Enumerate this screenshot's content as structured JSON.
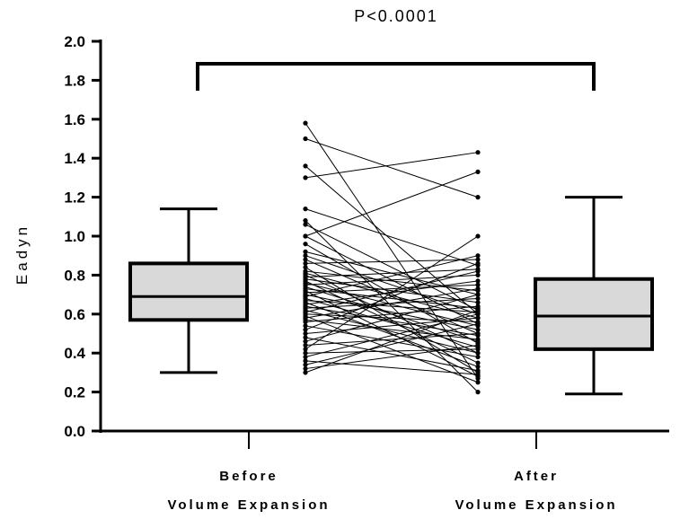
{
  "chart_data": {
    "type": "box-and-paired-lines",
    "title": "",
    "ylabel": "Eadyn",
    "xlabel": "",
    "ylim": [
      0,
      2.0
    ],
    "yticks": [
      0.0,
      0.2,
      0.4,
      0.6,
      0.8,
      1.0,
      1.2,
      1.4,
      1.6,
      1.8,
      2.0
    ],
    "ytick_labels": [
      "0.0",
      "0.2",
      "0.4",
      "0.6",
      "0.8",
      "1.0",
      "1.2",
      "1.4",
      "1.6",
      "1.8",
      "2.0"
    ],
    "categories": [
      {
        "line1": "Before",
        "line2": "Volume Expansion"
      },
      {
        "line1": "After",
        "line2": "Volume Expansion"
      }
    ],
    "boxes": [
      {
        "whisker_low": 0.3,
        "q1": 0.57,
        "median": 0.69,
        "q3": 0.86,
        "whisker_high": 1.14
      },
      {
        "whisker_low": 0.19,
        "q1": 0.42,
        "median": 0.59,
        "q3": 0.78,
        "whisker_high": 1.2
      }
    ],
    "pairs": [
      [
        1.58,
        0.27
      ],
      [
        1.5,
        1.2
      ],
      [
        1.36,
        0.6
      ],
      [
        1.3,
        1.43
      ],
      [
        1.14,
        0.85
      ],
      [
        1.08,
        0.2
      ],
      [
        1.06,
        0.62
      ],
      [
        1.0,
        1.33
      ],
      [
        1.0,
        0.55
      ],
      [
        0.96,
        0.45
      ],
      [
        0.92,
        0.7
      ],
      [
        0.9,
        0.6
      ],
      [
        0.88,
        0.5
      ],
      [
        0.86,
        0.88
      ],
      [
        0.84,
        0.3
      ],
      [
        0.82,
        0.72
      ],
      [
        0.81,
        0.58
      ],
      [
        0.8,
        0.4
      ],
      [
        0.79,
        0.83
      ],
      [
        0.78,
        0.66
      ],
      [
        0.77,
        0.35
      ],
      [
        0.76,
        0.54
      ],
      [
        0.75,
        0.8
      ],
      [
        0.74,
        0.46
      ],
      [
        0.73,
        0.63
      ],
      [
        0.72,
        0.28
      ],
      [
        0.71,
        0.75
      ],
      [
        0.7,
        0.52
      ],
      [
        0.69,
        0.9
      ],
      [
        0.68,
        0.43
      ],
      [
        0.67,
        0.61
      ],
      [
        0.66,
        0.33
      ],
      [
        0.65,
        0.77
      ],
      [
        0.64,
        0.49
      ],
      [
        0.63,
        0.68
      ],
      [
        0.62,
        0.4
      ],
      [
        0.61,
        0.82
      ],
      [
        0.6,
        0.56
      ],
      [
        0.59,
        0.25
      ],
      [
        0.58,
        0.73
      ],
      [
        0.57,
        0.47
      ],
      [
        0.56,
        0.64
      ],
      [
        0.54,
        0.38
      ],
      [
        0.52,
        0.86
      ],
      [
        0.5,
        0.58
      ],
      [
        0.48,
        0.31
      ],
      [
        0.46,
        0.7
      ],
      [
        0.44,
        0.5
      ],
      [
        0.42,
        1.0
      ],
      [
        0.4,
        0.42
      ],
      [
        0.38,
        0.6
      ],
      [
        0.36,
        0.29
      ],
      [
        0.34,
        0.55
      ],
      [
        0.32,
        0.44
      ],
      [
        0.3,
        0.62
      ]
    ],
    "significance": {
      "label": "P<0.0001"
    },
    "grid": false,
    "colors": {
      "box_fill": "#d9d9d9",
      "stroke": "#000000"
    }
  }
}
